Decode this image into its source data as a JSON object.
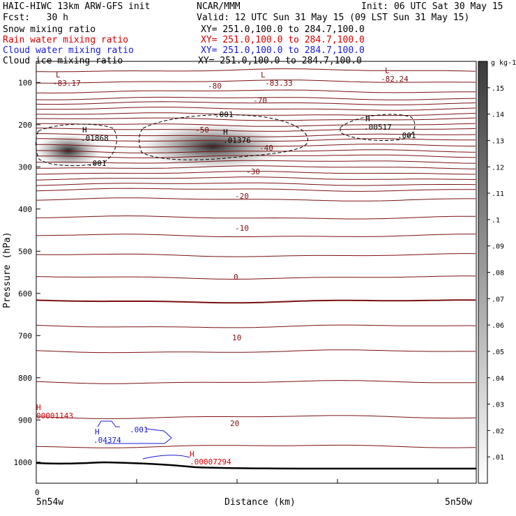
{
  "header": {
    "model": "HAIC-HIWC 13km ARW-GFS init",
    "org": "NCAR/MMM",
    "init": "Init: 06 UTC Sat 30 May 15",
    "fcst": "Fcst:   30 h",
    "valid": "Valid: 12 UTC Sun 31 May 15 (09 LST Sun 31 May 15)",
    "fields": [
      {
        "name": "Snow mixing ratio",
        "xy": "XY= 251.0,100.0 to 284.7,100.0",
        "color": "#000000"
      },
      {
        "name": "Rain water mixing ratio",
        "xy": "XY= 251.0,100.0 to 284.7,100.0",
        "color": "#d40000"
      },
      {
        "name": "Cloud water mixing ratio",
        "xy": "XY= 251.0,100.0 to 284.7,100.0",
        "color": "#1a1ad4"
      },
      {
        "name": "Cloud ice mixing ratio",
        "xy": "XY= 251.0,100.0 to 284.7,100.0",
        "color": "#000000"
      }
    ]
  },
  "chart_data": {
    "type": "cross-section",
    "ylabel": "Pressure (hPa)",
    "xlabel": "Distance (km)",
    "y_ticks": [
      100,
      200,
      300,
      400,
      500,
      600,
      700,
      800,
      900,
      1000
    ],
    "ylim": [
      50,
      1050
    ],
    "x_tick_label": "0",
    "x_endpoints": [
      "5n54w",
      "5n50w"
    ],
    "colorbar": {
      "unit": "g kg-1",
      "levels": [
        ".01",
        ".02",
        ".03",
        ".04",
        ".05",
        ".06",
        ".07",
        ".08",
        ".09",
        ".1",
        ".11",
        ".12",
        ".13",
        ".14",
        ".15"
      ]
    },
    "temperature_labels": [
      "-80",
      "-70",
      "-50",
      "-40",
      "-30",
      "-20",
      "-10",
      "0",
      "10",
      "20"
    ],
    "extrema": [
      {
        "type": "L",
        "value": "-83.17"
      },
      {
        "type": "L",
        "value": "-83.33"
      },
      {
        "type": "L",
        "value": "-82.24"
      },
      {
        "type": "H",
        "value": ".01868"
      },
      {
        "type": "H",
        "value": ".01376"
      },
      {
        "type": "H",
        "value": ".00517"
      },
      {
        "type": "H",
        "value": "00001143"
      },
      {
        "type": "H",
        "value": ".04374"
      },
      {
        "type": "H",
        "value": ".00007294"
      }
    ],
    "contour_labels": {
      "ice": [
        ".001",
        ".001",
        ".001"
      ],
      "cloud_water": [
        ".001"
      ]
    },
    "colors": {
      "temperature": "#7a1010",
      "rain": "#d40000",
      "cloud_water": "#1a1ad4",
      "terrain": "#000000"
    }
  }
}
